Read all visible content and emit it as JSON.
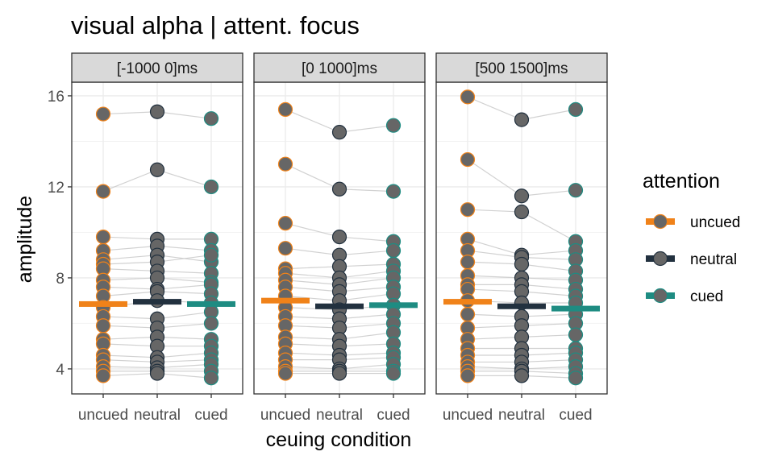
{
  "chart_data": {
    "type": "scatter",
    "title": "visual alpha | attent. focus",
    "xlabel": "ceuing condition",
    "ylabel": "amplitude",
    "categories": [
      "uncued",
      "neutral",
      "cued"
    ],
    "y_ticks": [
      4,
      8,
      12,
      16
    ],
    "ylim": [
      2.9,
      16.6
    ],
    "grid": true,
    "legend": {
      "title": "attention",
      "position": "right",
      "entries": [
        "uncued",
        "neutral",
        "cued"
      ]
    },
    "colors": {
      "uncued": "#F08219",
      "neutral": "#22313F",
      "cued": "#1E8C82",
      "point_fill": "#666666",
      "line": "#CCCCCC"
    },
    "panels": [
      {
        "label": "[-1000 0]ms",
        "means": [
          6.85,
          6.95,
          6.85
        ],
        "subjects": [
          [
            15.2,
            15.3,
            15.0
          ],
          [
            11.8,
            12.75,
            12.0
          ],
          [
            9.8,
            9.7,
            9.7
          ],
          [
            9.2,
            9.4,
            9.2
          ],
          [
            8.8,
            9.0,
            8.7
          ],
          [
            8.6,
            8.7,
            9.0
          ],
          [
            8.4,
            8.3,
            8.2
          ],
          [
            7.9,
            8.0,
            7.8
          ],
          [
            7.6,
            7.5,
            7.7
          ],
          [
            7.2,
            7.4,
            7.3
          ],
          [
            6.7,
            7.0,
            6.9
          ],
          [
            6.3,
            6.2,
            6.5
          ],
          [
            5.9,
            5.8,
            6.0
          ],
          [
            5.3,
            5.4,
            5.3
          ],
          [
            5.1,
            5.0,
            5.0
          ],
          [
            4.6,
            4.5,
            4.7
          ],
          [
            4.4,
            4.3,
            4.4
          ],
          [
            4.1,
            4.05,
            4.2
          ],
          [
            3.9,
            3.9,
            3.9
          ],
          [
            3.7,
            3.8,
            3.6
          ]
        ]
      },
      {
        "label": "[0 1000]ms",
        "means": [
          7.0,
          6.75,
          6.8
        ],
        "subjects": [
          [
            15.4,
            14.4,
            14.7
          ],
          [
            13.0,
            11.9,
            11.8
          ],
          [
            10.4,
            9.8,
            9.6
          ],
          [
            9.3,
            9.0,
            9.2
          ],
          [
            8.4,
            8.5,
            8.6
          ],
          [
            8.2,
            8.0,
            8.3
          ],
          [
            7.9,
            7.7,
            8.0
          ],
          [
            7.6,
            7.4,
            7.6
          ],
          [
            7.2,
            7.0,
            7.3
          ],
          [
            6.7,
            6.6,
            6.8
          ],
          [
            6.3,
            6.2,
            6.4
          ],
          [
            5.9,
            5.8,
            6.0
          ],
          [
            5.4,
            5.3,
            5.6
          ],
          [
            5.1,
            5.0,
            5.1
          ],
          [
            4.7,
            4.6,
            4.7
          ],
          [
            4.4,
            4.4,
            4.5
          ],
          [
            4.1,
            4.0,
            4.2
          ],
          [
            3.9,
            3.9,
            3.9
          ],
          [
            3.8,
            3.8,
            3.8
          ]
        ]
      },
      {
        "label": "[500 1500]ms",
        "means": [
          6.95,
          6.75,
          6.65
        ],
        "subjects": [
          [
            15.95,
            14.95,
            15.4
          ],
          [
            13.2,
            11.6,
            11.85
          ],
          [
            11.0,
            10.9,
            9.6
          ],
          [
            9.7,
            9.0,
            9.2
          ],
          [
            9.2,
            8.9,
            8.8
          ],
          [
            8.7,
            8.6,
            8.3
          ],
          [
            8.1,
            8.0,
            7.9
          ],
          [
            7.7,
            7.7,
            7.5
          ],
          [
            7.5,
            7.4,
            7.2
          ],
          [
            7.0,
            6.9,
            6.9
          ],
          [
            6.4,
            6.3,
            6.4
          ],
          [
            5.8,
            5.9,
            6.0
          ],
          [
            5.3,
            5.4,
            5.5
          ],
          [
            4.9,
            4.9,
            4.9
          ],
          [
            4.6,
            4.6,
            4.7
          ],
          [
            4.3,
            4.3,
            4.4
          ],
          [
            4.1,
            4.0,
            4.1
          ],
          [
            3.9,
            3.9,
            3.8
          ],
          [
            3.7,
            3.7,
            3.6
          ]
        ]
      }
    ]
  }
}
